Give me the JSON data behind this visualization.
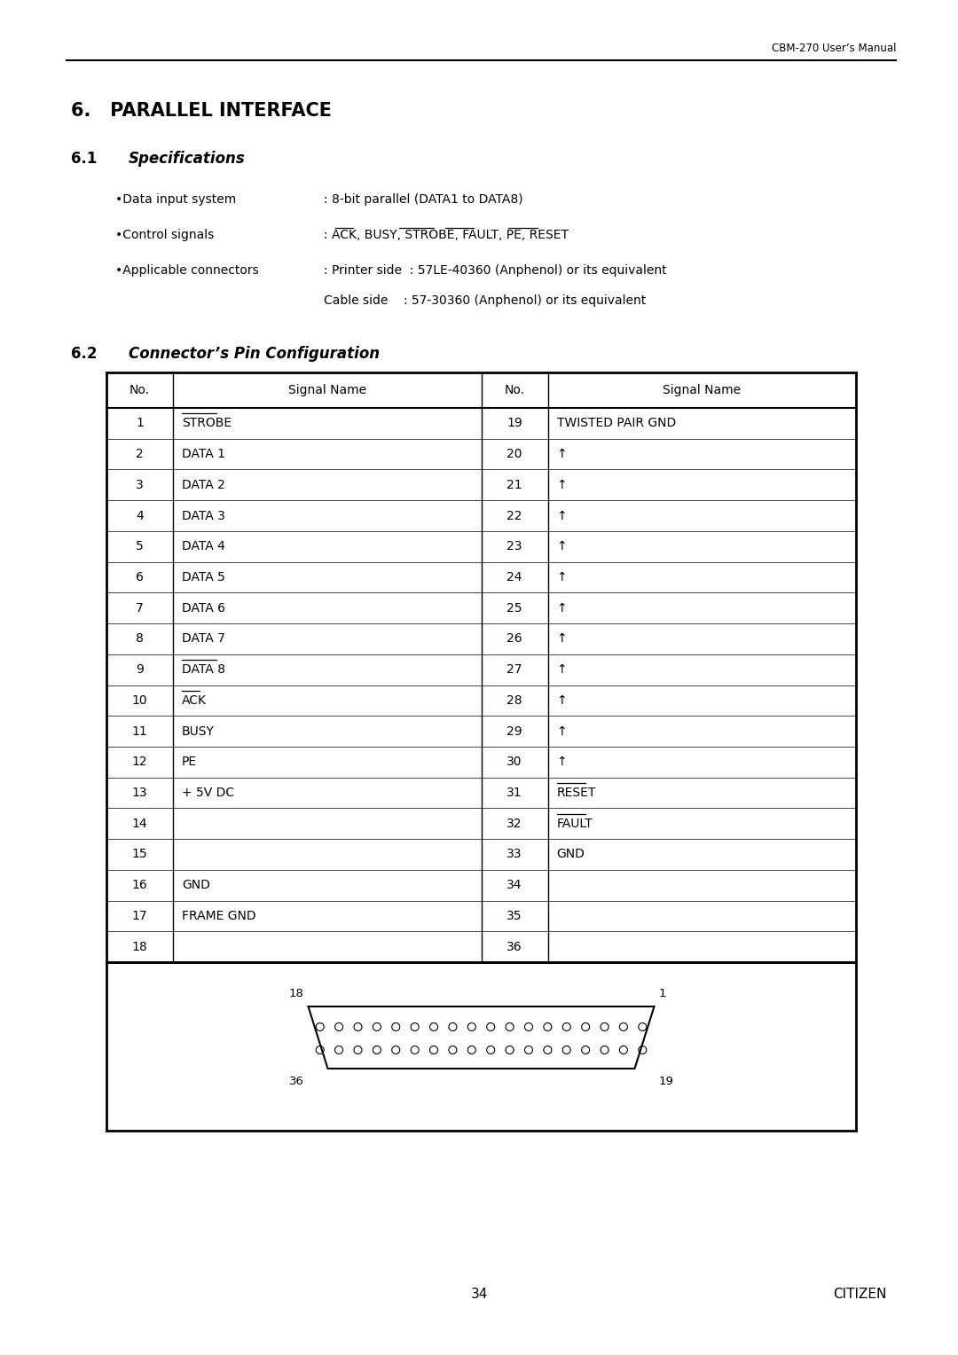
{
  "header_right": "CBM-270 User’s Manual",
  "section_title": "6.   PARALLEL INTERFACE",
  "subsection_61_num": "6.1",
  "subsection_61_text": "Specifications",
  "bullet_data_label": "•Data input system",
  "bullet_data_val": ": 8-bit parallel (DATA1 to DATA8)",
  "bullet_ctrl_label": "•Control signals",
  "bullet_ctrl_val": ": ACK, BUSY, STROBE, FAULT, PE, RESET",
  "bullet_conn_label": "•Applicable connectors",
  "bullet_conn_val1": ": Printer side  : 57LE-40360 (Anphenol) or its equivalent",
  "bullet_conn_val2": "Cable side    : 57-30360 (Anphenol) or its equivalent",
  "subsection_62_num": "6.2",
  "subsection_62_text": "Connector’s Pin Configuration",
  "table_col_headers": [
    "No.",
    "Signal Name",
    "No.",
    "Signal Name"
  ],
  "left_pins": [
    {
      "no": 1,
      "name": "STROBE",
      "overline": true
    },
    {
      "no": 2,
      "name": "DATA 1",
      "overline": false
    },
    {
      "no": 3,
      "name": "DATA 2",
      "overline": false
    },
    {
      "no": 4,
      "name": "DATA 3",
      "overline": false
    },
    {
      "no": 5,
      "name": "DATA 4",
      "overline": false
    },
    {
      "no": 6,
      "name": "DATA 5",
      "overline": false
    },
    {
      "no": 7,
      "name": "DATA 6",
      "overline": false
    },
    {
      "no": 8,
      "name": "DATA 7",
      "overline": false
    },
    {
      "no": 9,
      "name": "DATA 8",
      "overline": true
    },
    {
      "no": 10,
      "name": "ACK",
      "overline": true
    },
    {
      "no": 11,
      "name": "BUSY",
      "overline": false
    },
    {
      "no": 12,
      "name": "PE",
      "overline": false
    },
    {
      "no": 13,
      "name": "+ 5V DC",
      "overline": false
    },
    {
      "no": 14,
      "name": "",
      "overline": false
    },
    {
      "no": 15,
      "name": "",
      "overline": false
    },
    {
      "no": 16,
      "name": "GND",
      "overline": false
    },
    {
      "no": 17,
      "name": "FRAME GND",
      "overline": false
    },
    {
      "no": 18,
      "name": "",
      "overline": false
    }
  ],
  "right_pins": [
    {
      "no": 19,
      "name": "TWISTED PAIR GND",
      "overline": false
    },
    {
      "no": 20,
      "name": "↑",
      "overline": false
    },
    {
      "no": 21,
      "name": "↑",
      "overline": false
    },
    {
      "no": 22,
      "name": "↑",
      "overline": false
    },
    {
      "no": 23,
      "name": "↑",
      "overline": false
    },
    {
      "no": 24,
      "name": "↑",
      "overline": false
    },
    {
      "no": 25,
      "name": "↑",
      "overline": false
    },
    {
      "no": 26,
      "name": "↑",
      "overline": false
    },
    {
      "no": 27,
      "name": "↑",
      "overline": false
    },
    {
      "no": 28,
      "name": "↑",
      "overline": false
    },
    {
      "no": 29,
      "name": "↑",
      "overline": false
    },
    {
      "no": 30,
      "name": "↑",
      "overline": false
    },
    {
      "no": 31,
      "name": "RESET",
      "overline": true
    },
    {
      "no": 32,
      "name": "FAULT",
      "overline": true
    },
    {
      "no": 33,
      "name": "GND",
      "overline": false
    },
    {
      "no": 34,
      "name": "",
      "overline": false
    },
    {
      "no": 35,
      "name": "",
      "overline": false
    },
    {
      "no": 36,
      "name": "",
      "overline": false
    }
  ],
  "page_num": "34",
  "footer_right": "CITIZEN",
  "bg_color": "#ffffff",
  "text_color": "#000000"
}
